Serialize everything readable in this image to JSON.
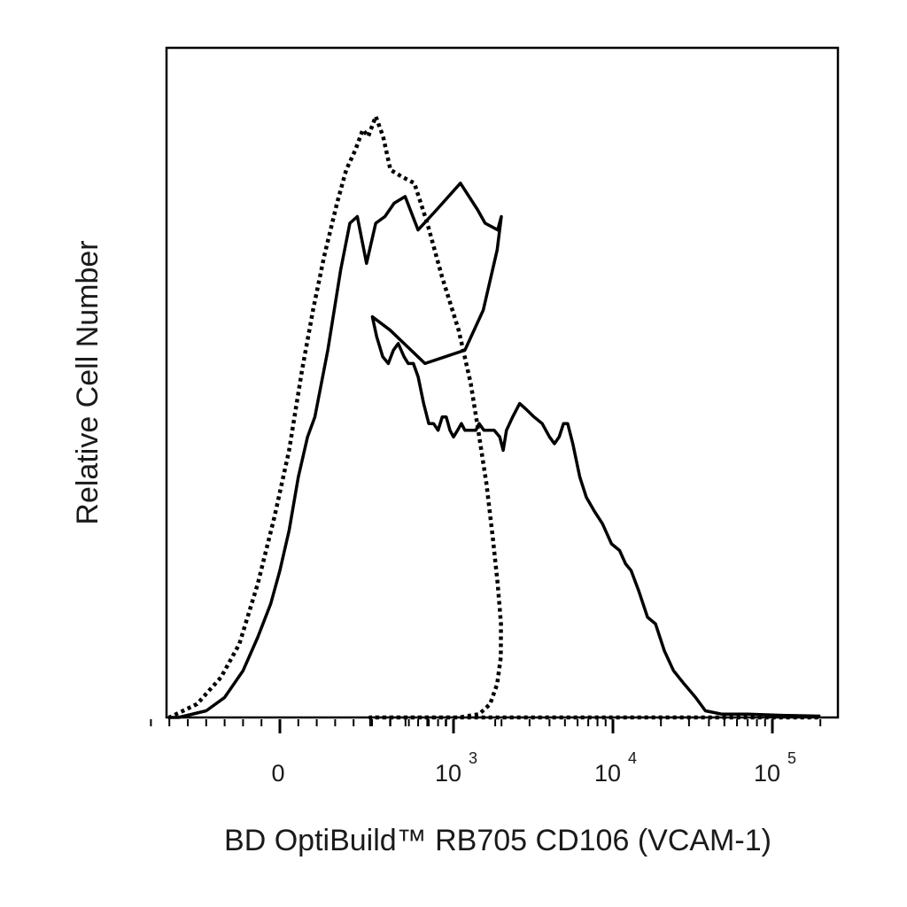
{
  "chart_data": {
    "type": "line",
    "title": "",
    "xlabel": "BD OptiBuild™ RB705 CD106 (VCAM-1)",
    "ylabel": "Relative Cell Number",
    "x_scale": "biexponential",
    "xlim": [
      -80,
      200000
    ],
    "ylim": [
      0,
      100
    ],
    "grid": false,
    "legend": "none",
    "x_ticks": [
      {
        "value": 0,
        "base": "0",
        "exp": ""
      },
      {
        "value": 1000,
        "base": "10",
        "exp": "3"
      },
      {
        "value": 10000,
        "base": "10",
        "exp": "4"
      },
      {
        "value": 100000,
        "base": "10",
        "exp": "5"
      }
    ],
    "series": [
      {
        "style": "solid",
        "color": "#000000",
        "points": [
          [
            -80,
            0
          ],
          [
            -55,
            0
          ],
          [
            -40,
            1
          ],
          [
            -30,
            3
          ],
          [
            -20,
            7
          ],
          [
            -12,
            12
          ],
          [
            -5,
            17
          ],
          [
            0,
            22
          ],
          [
            5,
            28
          ],
          [
            10,
            36
          ],
          [
            15,
            42
          ],
          [
            19,
            45
          ],
          [
            26,
            55
          ],
          [
            33,
            67
          ],
          [
            38,
            74
          ],
          [
            42,
            75
          ],
          [
            47,
            68
          ],
          [
            52,
            74
          ],
          [
            57,
            75
          ],
          [
            62,
            77
          ],
          [
            68,
            78
          ],
          [
            75,
            73
          ],
          [
            85,
            76
          ],
          [
            98,
            80
          ],
          [
            115,
            76
          ],
          [
            125,
            74
          ],
          [
            150,
            73
          ],
          [
            170,
            75
          ],
          [
            195,
            70
          ],
          [
            220,
            61
          ],
          [
            240,
            55
          ],
          [
            270,
            53
          ],
          [
            290,
            58
          ],
          [
            310,
            60
          ],
          [
            330,
            57
          ],
          [
            360,
            54
          ],
          [
            390,
            53
          ],
          [
            420,
            55
          ],
          [
            450,
            56
          ],
          [
            490,
            54
          ],
          [
            520,
            53
          ],
          [
            560,
            53
          ],
          [
            600,
            51
          ],
          [
            650,
            47
          ],
          [
            700,
            44
          ],
          [
            750,
            44
          ],
          [
            800,
            43
          ],
          [
            850,
            45
          ],
          [
            900,
            45
          ],
          [
            950,
            43
          ],
          [
            1000,
            42
          ],
          [
            1060,
            43
          ],
          [
            1120,
            44
          ],
          [
            1180,
            43
          ],
          [
            1240,
            43
          ],
          [
            1300,
            43
          ],
          [
            1380,
            43
          ],
          [
            1450,
            44
          ],
          [
            1550,
            43
          ],
          [
            1650,
            43
          ],
          [
            1800,
            43
          ],
          [
            1950,
            42
          ],
          [
            2050,
            40
          ],
          [
            2150,
            43
          ],
          [
            2350,
            45
          ],
          [
            2600,
            47
          ],
          [
            2900,
            46
          ],
          [
            3200,
            45
          ],
          [
            3600,
            44
          ],
          [
            4000,
            42
          ],
          [
            4300,
            41
          ],
          [
            4600,
            42
          ],
          [
            4900,
            44
          ],
          [
            5200,
            44
          ],
          [
            5600,
            41
          ],
          [
            6200,
            36
          ],
          [
            6800,
            33
          ],
          [
            7600,
            31
          ],
          [
            8600,
            29
          ],
          [
            9800,
            26
          ],
          [
            11000,
            25
          ],
          [
            12000,
            23
          ],
          [
            13000,
            22
          ],
          [
            14500,
            19
          ],
          [
            16500,
            15
          ],
          [
            18500,
            14
          ],
          [
            21000,
            10
          ],
          [
            24000,
            7
          ],
          [
            28000,
            5
          ],
          [
            33000,
            3
          ],
          [
            38000,
            1
          ],
          [
            48000,
            0.5
          ],
          [
            70000,
            0.5
          ],
          [
            120000,
            0.3
          ],
          [
            200000,
            0.2
          ]
        ]
      },
      {
        "style": "dotted",
        "color": "#000000",
        "points": [
          [
            -80,
            0
          ],
          [
            -60,
            0
          ],
          [
            -45,
            2
          ],
          [
            -32,
            6
          ],
          [
            -22,
            11
          ],
          [
            -12,
            20
          ],
          [
            -3,
            30
          ],
          [
            5,
            40
          ],
          [
            12,
            52
          ],
          [
            18,
            61
          ],
          [
            24,
            69
          ],
          [
            31,
            77
          ],
          [
            36,
            82
          ],
          [
            41,
            85
          ],
          [
            45,
            88
          ],
          [
            48,
            87
          ],
          [
            52,
            90
          ],
          [
            56,
            87
          ],
          [
            60,
            82
          ],
          [
            66,
            81
          ],
          [
            73,
            80
          ],
          [
            80,
            74
          ],
          [
            88,
            66
          ],
          [
            97,
            58
          ],
          [
            107,
            50
          ],
          [
            117,
            42
          ],
          [
            127,
            35
          ],
          [
            138,
            27
          ],
          [
            150,
            20
          ],
          [
            165,
            14
          ],
          [
            180,
            9
          ],
          [
            195,
            5
          ],
          [
            210,
            2
          ],
          [
            225,
            0.5
          ],
          [
            245,
            0
          ],
          [
            300,
            0
          ],
          [
            200000,
            0
          ]
        ]
      }
    ]
  }
}
